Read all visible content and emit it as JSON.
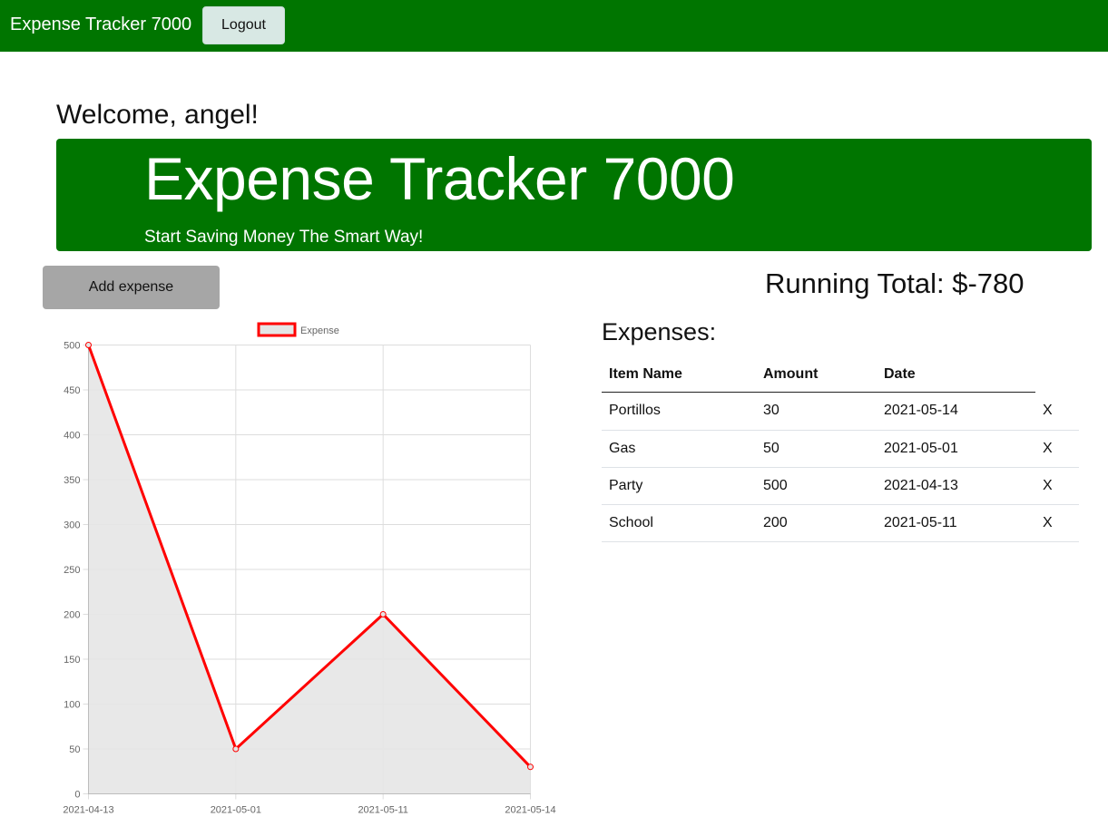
{
  "navbar": {
    "brand": "Expense Tracker 7000",
    "logout_label": "Logout"
  },
  "welcome": "Welcome, angel!",
  "jumbotron": {
    "title": "Expense Tracker 7000",
    "subtitle": "Start Saving Money The Smart Way!"
  },
  "add_expense_label": "Add expense",
  "running_total": "Running Total: $-780",
  "expenses": {
    "heading": "Expenses:",
    "columns": [
      "Item Name",
      "Amount",
      "Date"
    ],
    "rows": [
      {
        "name": "Portillos",
        "amount": "30",
        "date": "2021-05-14",
        "delete": "X"
      },
      {
        "name": "Gas",
        "amount": "50",
        "date": "2021-05-01",
        "delete": "X"
      },
      {
        "name": "Party",
        "amount": "500",
        "date": "2021-04-13",
        "delete": "X"
      },
      {
        "name": "School",
        "amount": "200",
        "date": "2021-05-11",
        "delete": "X"
      }
    ]
  },
  "colors": {
    "brand_green": "#007500",
    "line_red": "#ff0000",
    "fill_gray": "#e5e5e5"
  },
  "chart_data": {
    "type": "line",
    "categories": [
      "2021-04-13",
      "2021-05-01",
      "2021-05-11",
      "2021-05-14"
    ],
    "series": [
      {
        "name": "Expense",
        "values": [
          500,
          50,
          200,
          30
        ]
      }
    ],
    "ylim": [
      0,
      500
    ],
    "yticks": [
      0,
      50,
      100,
      150,
      200,
      250,
      300,
      350,
      400,
      450,
      500
    ],
    "legend": "top-center",
    "grid": true,
    "filled": true
  }
}
